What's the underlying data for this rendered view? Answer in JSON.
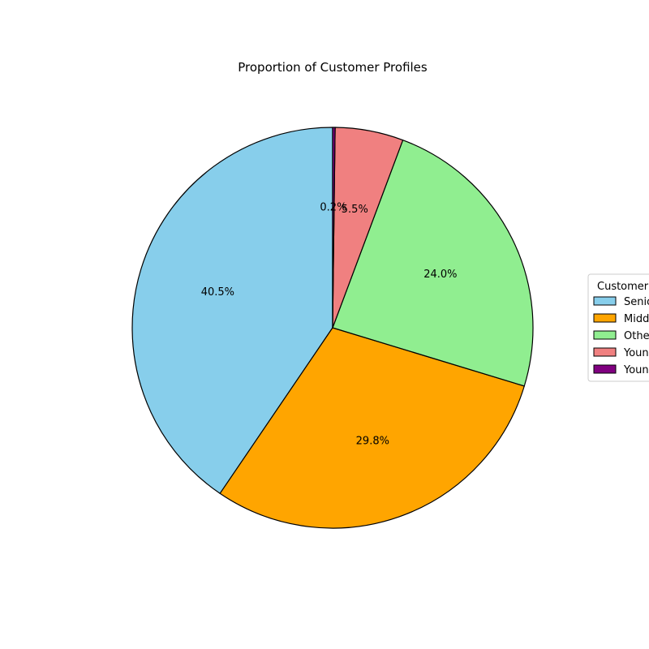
{
  "chart_data": {
    "type": "pie",
    "title": "Proportion of Customer Profiles",
    "legend": {
      "title": "Customer",
      "placement": "right"
    },
    "slices": [
      {
        "name": "Senio",
        "value": 40.5,
        "label": "40.5%",
        "color": "#87ceeb"
      },
      {
        "name": "Midd",
        "value": 29.8,
        "label": "29.8%",
        "color": "#ffa500"
      },
      {
        "name": "Othe",
        "value": 24.0,
        "label": "24.0%",
        "color": "#90ee90"
      },
      {
        "name": "Youn",
        "value": 5.5,
        "label": "5.5%",
        "color": "#f08080"
      },
      {
        "name": "Youn",
        "value": 0.2,
        "label": "0.2%",
        "color": "#800080"
      }
    ],
    "start_angle_deg": 90,
    "direction": "counterclockwise",
    "edge_color": "#000000"
  }
}
